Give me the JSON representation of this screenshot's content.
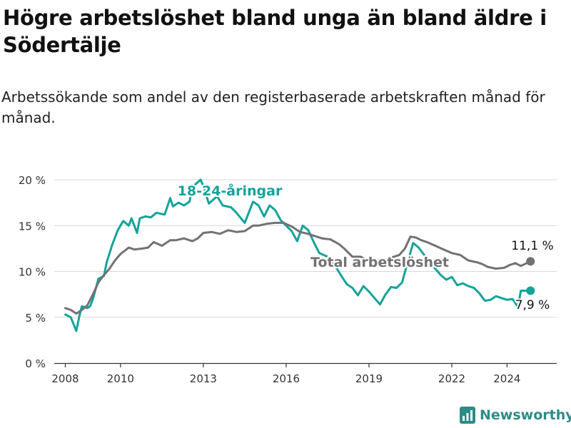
{
  "title": "Högre arbetslöshet bland unga än bland äldre i Södertälje",
  "subtitle": "Arbetssökande som andel av den registerbaserade arbetskraften månad för månad.",
  "brand": {
    "name": "Newsworthy",
    "icon": "newsworthy-logo-icon"
  },
  "colors": {
    "young": "#14a39a",
    "total": "#727274",
    "grid": "#d9d9d9",
    "axis": "#333333"
  },
  "chart_data": {
    "type": "line",
    "ylabel": "",
    "xlabel": "",
    "ylim": [
      0,
      20
    ],
    "xlim": [
      2007.6,
      2025.8
    ],
    "yticks": [
      0,
      5,
      10,
      15,
      20
    ],
    "ytick_labels": [
      "0 %",
      "5 %",
      "10 %",
      "15 %",
      "20 %"
    ],
    "xticks": [
      2008,
      2010,
      2013,
      2016,
      2019,
      2022,
      2024
    ],
    "xtick_labels": [
      "2008",
      "2010",
      "2013",
      "2016",
      "2019",
      "2022",
      "2024"
    ],
    "series": [
      {
        "name": "18-24-åringar",
        "label": "18-24-åringar",
        "end_label": "7,9 %",
        "end_value": 7.9,
        "x": [
          2008.0,
          2008.2,
          2008.4,
          2008.5,
          2008.6,
          2008.8,
          2008.9,
          2009.0,
          2009.2,
          2009.4,
          2009.5,
          2009.7,
          2009.9,
          2010.1,
          2010.3,
          2010.4,
          2010.6,
          2010.7,
          2010.9,
          2011.1,
          2011.3,
          2011.6,
          2011.8,
          2011.9,
          2012.1,
          2012.3,
          2012.5,
          2012.6,
          2012.9,
          2013.0,
          2013.2,
          2013.5,
          2013.7,
          2014.0,
          2014.2,
          2014.5,
          2014.8,
          2015.0,
          2015.2,
          2015.4,
          2015.6,
          2015.8,
          2016.0,
          2016.2,
          2016.4,
          2016.6,
          2016.8,
          2017.0,
          2017.2,
          2017.5,
          2017.8,
          2018.0,
          2018.2,
          2018.4,
          2018.6,
          2018.8,
          2019.0,
          2019.2,
          2019.4,
          2019.6,
          2019.8,
          2020.0,
          2020.2,
          2020.4,
          2020.6,
          2020.8,
          2021.0,
          2021.2,
          2021.4,
          2021.6,
          2021.8,
          2022.0,
          2022.2,
          2022.4,
          2022.6,
          2022.8,
          2023.0,
          2023.2,
          2023.4,
          2023.6,
          2023.8,
          2024.0,
          2024.2,
          2024.4,
          2024.5,
          2024.7,
          2024.85
        ],
        "values": [
          5.3,
          5.0,
          3.5,
          5.0,
          6.2,
          6.0,
          6.2,
          7.0,
          9.2,
          9.5,
          11.0,
          12.9,
          14.5,
          15.5,
          15.0,
          15.8,
          14.2,
          15.8,
          16.0,
          15.9,
          16.4,
          16.2,
          18.0,
          17.1,
          17.5,
          17.2,
          17.6,
          19.2,
          20.0,
          19.3,
          17.4,
          18.2,
          17.2,
          17.0,
          16.4,
          15.3,
          17.6,
          17.2,
          16.0,
          17.2,
          16.7,
          15.6,
          15.0,
          14.4,
          13.3,
          15.0,
          14.5,
          13.2,
          12.0,
          11.6,
          10.5,
          9.5,
          8.6,
          8.2,
          7.4,
          8.4,
          7.8,
          7.1,
          6.4,
          7.5,
          8.3,
          8.2,
          8.8,
          11.0,
          13.1,
          12.6,
          11.8,
          11.0,
          10.3,
          9.6,
          9.1,
          9.4,
          8.5,
          8.7,
          8.4,
          8.2,
          7.6,
          6.8,
          6.9,
          7.3,
          7.1,
          6.9,
          7.0,
          6.1,
          7.9,
          7.9,
          7.9
        ]
      },
      {
        "name": "Total arbetslöshet",
        "label": "Total arbetslöshet",
        "end_label": "11,1 %",
        "end_value": 11.1,
        "x": [
          2008.0,
          2008.2,
          2008.4,
          2008.6,
          2008.8,
          2009.0,
          2009.2,
          2009.4,
          2009.6,
          2009.8,
          2010.0,
          2010.3,
          2010.5,
          2010.8,
          2011.0,
          2011.2,
          2011.5,
          2011.8,
          2012.0,
          2012.3,
          2012.6,
          2012.8,
          2013.0,
          2013.3,
          2013.6,
          2013.9,
          2014.2,
          2014.5,
          2014.8,
          2015.0,
          2015.3,
          2015.6,
          2015.9,
          2016.2,
          2016.5,
          2016.8,
          2017.0,
          2017.3,
          2017.6,
          2017.9,
          2018.1,
          2018.4,
          2018.7,
          2019.0,
          2019.3,
          2019.6,
          2019.9,
          2020.1,
          2020.3,
          2020.5,
          2020.7,
          2020.9,
          2021.1,
          2021.4,
          2021.7,
          2022.0,
          2022.3,
          2022.6,
          2022.9,
          2023.1,
          2023.3,
          2023.6,
          2023.9,
          2024.1,
          2024.3,
          2024.5,
          2024.85
        ],
        "values": [
          6.0,
          5.8,
          5.4,
          5.8,
          6.3,
          7.5,
          8.8,
          9.6,
          10.3,
          11.2,
          11.9,
          12.6,
          12.4,
          12.5,
          12.6,
          13.2,
          12.8,
          13.4,
          13.4,
          13.6,
          13.3,
          13.6,
          14.2,
          14.3,
          14.1,
          14.5,
          14.3,
          14.4,
          15.0,
          15.0,
          15.2,
          15.3,
          15.3,
          14.9,
          14.3,
          14.1,
          13.9,
          13.6,
          13.5,
          13.0,
          12.5,
          11.6,
          11.6,
          11.1,
          11.2,
          11.3,
          11.6,
          11.8,
          12.5,
          13.8,
          13.7,
          13.4,
          13.2,
          12.8,
          12.4,
          12.0,
          11.8,
          11.2,
          11.0,
          10.8,
          10.5,
          10.3,
          10.4,
          10.7,
          10.9,
          10.6,
          11.1
        ]
      }
    ]
  }
}
